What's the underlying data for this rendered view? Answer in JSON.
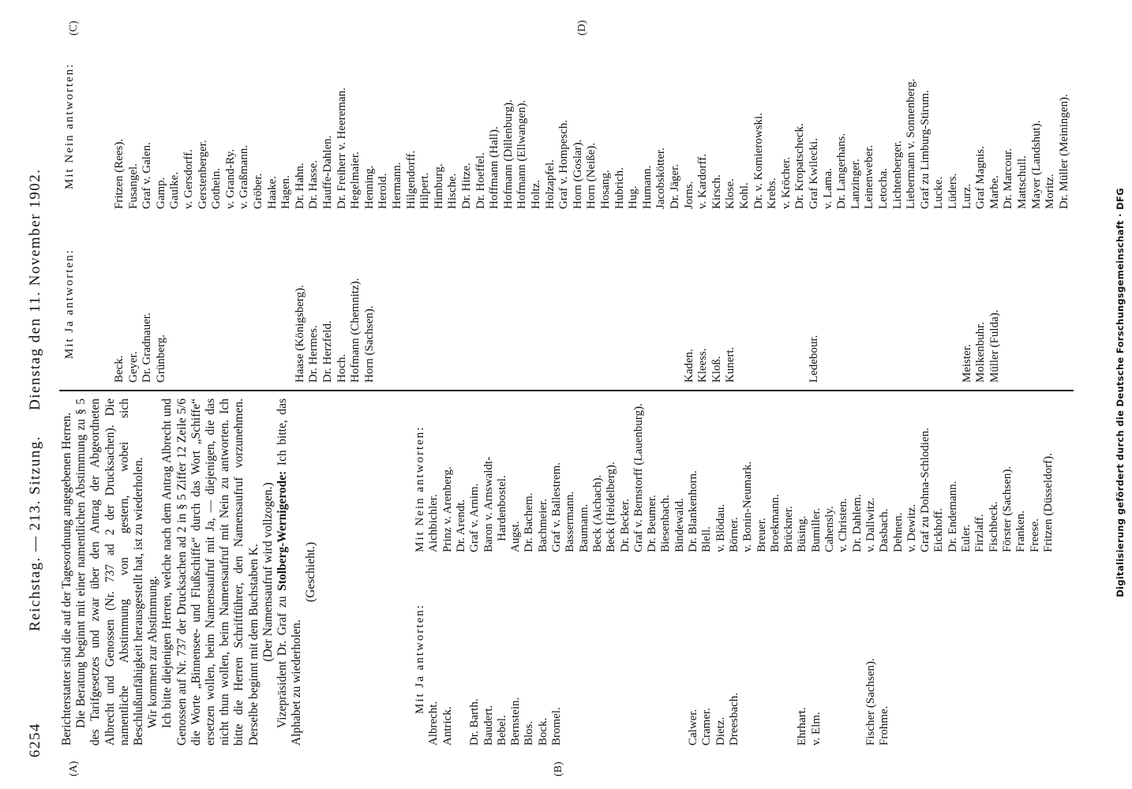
{
  "header": {
    "page_number": "6254",
    "session": "Reichstag. — 213. Sitzung.",
    "date": "Dienstag den 11. November 1902."
  },
  "margin_marks": [
    "(A)",
    "(B)",
    "(C)",
    "(D)"
  ],
  "body": [
    "Berichterstatter sind die auf der Tagesordnung angegebenen Herren.",
    "Die Beratung beginnt mit einer namentlichen Abstimmung zu § 5 des Tarifgesetzes und zwar über den Antrag der Abgeordneten Albrecht und Genossen (Nr. 737 ad 2 der Drucksachen). Die namentliche Abstimmung von gestern, wobei sich Beschlußunfähigkeit herausgestellt hat, ist zu wiederholen.",
    "Wir kommen zur Abstimmung.",
    "Ich bitte diejenigen Herren, welche nach dem Antrag Albrecht und Genossen auf Nr. 737 der Drucksachen ad 2 in § 5 Ziffer 12 Zeile 5/6 die Worte „Binnensee- und Flußschiffe“ durch das Wort „Schiffe“ ersetzen wollen, beim Namensaufruf mit Ja, — diejenigen, die das nicht thun wollen, beim Namensaufruf mit Nein zu antworten. Ich bitte die Herren Schriftführer, den Namensaufruf vorzunehmen. Derselbe beginnt mit dem Buchstaben K.",
    "(Der Namensaufruf wird vollzogen.)",
    {
      "speaker_prefix": "Vizepräsident Dr. Graf zu",
      "speaker": "Stolberg-Wernigerode:",
      "text": "Ich bitte, das Alphabet zu wiederholen."
    },
    "(Geschieht.)"
  ],
  "left_votes": {
    "yes_heading": "Mit Ja antworten:",
    "yes": [
      "Albrecht.",
      "Antrick.",
      "Dr. Barth.",
      "Baudert.",
      "Bebel.",
      "Bernstein.",
      "Blos.",
      "Bock.",
      "Bromel.",
      "Calwer.",
      "Cramer.",
      "Dietz.",
      "Dreesbach.",
      "Ehrhart.",
      "v. Elm.",
      "Fischer (Sachsen).",
      "Frohme."
    ],
    "no_heading": "Mit Nein antworten:",
    "no": [
      "Aichbichler.",
      "Prinz v. Arenberg.",
      "Dr. Arendt.",
      "Graf v. Arnim.",
      "Baron v. Arnswaldt-Hardenbostel.",
      "Augst.",
      "Dr. Bachem.",
      "Bachmeier.",
      "Graf v. Ballestrem.",
      "Bassermann.",
      "Baumann.",
      "Beck (Aichach).",
      "Beck (Heidelberg).",
      "Dr. Becker.",
      "Graf v. Bernstorff (Lauenburg).",
      "Dr. Beumer.",
      "Biesenbach.",
      "Bindewald.",
      "Dr. Blankenhorn.",
      "Blell.",
      "v. Blödau.",
      "Börner.",
      "v. Bonin-Neumark.",
      "Breuer.",
      "Broekmann.",
      "Brückner.",
      "Büsing.",
      "Bumiller.",
      "Cahensly.",
      "v. Christen.",
      "Dr. Dahlem.",
      "v. Dallwitz.",
      "Dasbach.",
      "Dehnen.",
      "v. Dewitz.",
      "Graf zu Dohna-Schlodien.",
      "Eickhoff.",
      "Dr. Endemann.",
      "Euler.",
      "Firzlaff.",
      "Fischbeck.",
      "Förster (Sachsen).",
      "Franken.",
      "Freese.",
      "Fritzen (Düsseldorf)."
    ]
  },
  "right_votes": {
    "yes_heading": "Mit Ja antworten:",
    "yes": [
      "Beck.",
      "Geyer.",
      "Dr. Gradnauer.",
      "Grünberg.",
      "Haase (Königsberg).",
      "Dr. Hermes.",
      "Dr. Herzfeld.",
      "Hoch.",
      "Hofmann (Chemnitz).",
      "Horn (Sachsen).",
      "Kaden.",
      "Kleess.",
      "Kloß.",
      "Kunert.",
      "Ledebour.",
      "Meister.",
      "Molkenbuhr.",
      "Müller (Fulda)."
    ],
    "no_heading": "Mit Nein antworten:",
    "no": [
      "Fritzen (Rees).",
      "Fusangel.",
      "Graf v. Galen.",
      "Gamp.",
      "Gaulke.",
      "v. Gersdorff.",
      "Gerstenberger.",
      "Gothein.",
      "v. Grand-Ry.",
      "v. Graßmann.",
      "Gröber.",
      "Haake.",
      "Hagen.",
      "Dr. Hahn.",
      "Dr. Hasse.",
      "Hauffe-Dahlen.",
      "Dr. Freiherr v. Heereman.",
      "Hegelmaier.",
      "Henning.",
      "Herold.",
      "Hermann.",
      "Hilgendorff.",
      "Hilpert.",
      "Himburg.",
      "Hische.",
      "Dr. Hitze.",
      "Dr. Hoeffel.",
      "Hoffmann (Hall).",
      "Hofmann (Dillenburg).",
      "Hofmann (Ellwangen).",
      "Holtz.",
      "Holzapfel.",
      "Graf v. Hompesch.",
      "Horn (Goslar).",
      "Horn (Neiße).",
      "Hosang.",
      "Hubrich.",
      "Hug.",
      "Humann.",
      "Jacobskötter.",
      "Dr. Jäger.",
      "Jorns.",
      "v. Kardorff.",
      "Kirsch.",
      "Klose.",
      "Kohl.",
      "Dr. v. Komierowski.",
      "Krebs.",
      "v. Kröcher.",
      "Dr. Kropatscheck.",
      "Graf Kwilecki.",
      "v. Lama.",
      "Dr. Langerhans.",
      "Lanzinger.",
      "Leinenweber.",
      "Letocha.",
      "Lichtenberger.",
      "Liebermann v. Sonnenberg.",
      "Graf zu Limburg-Stirum.",
      "Lucke.",
      "Lüders.",
      "Lurz.",
      "Graf Magnis.",
      "Marbe.",
      "Dr. Marcour.",
      "Mattschull.",
      "Mayer (Landshut).",
      "Moritz.",
      "Dr. Müller (Meiningen)."
    ]
  },
  "footer_note": "Digitalisierung gefördert durch die Deutsche Forschungsgemeinschaft · DFG"
}
